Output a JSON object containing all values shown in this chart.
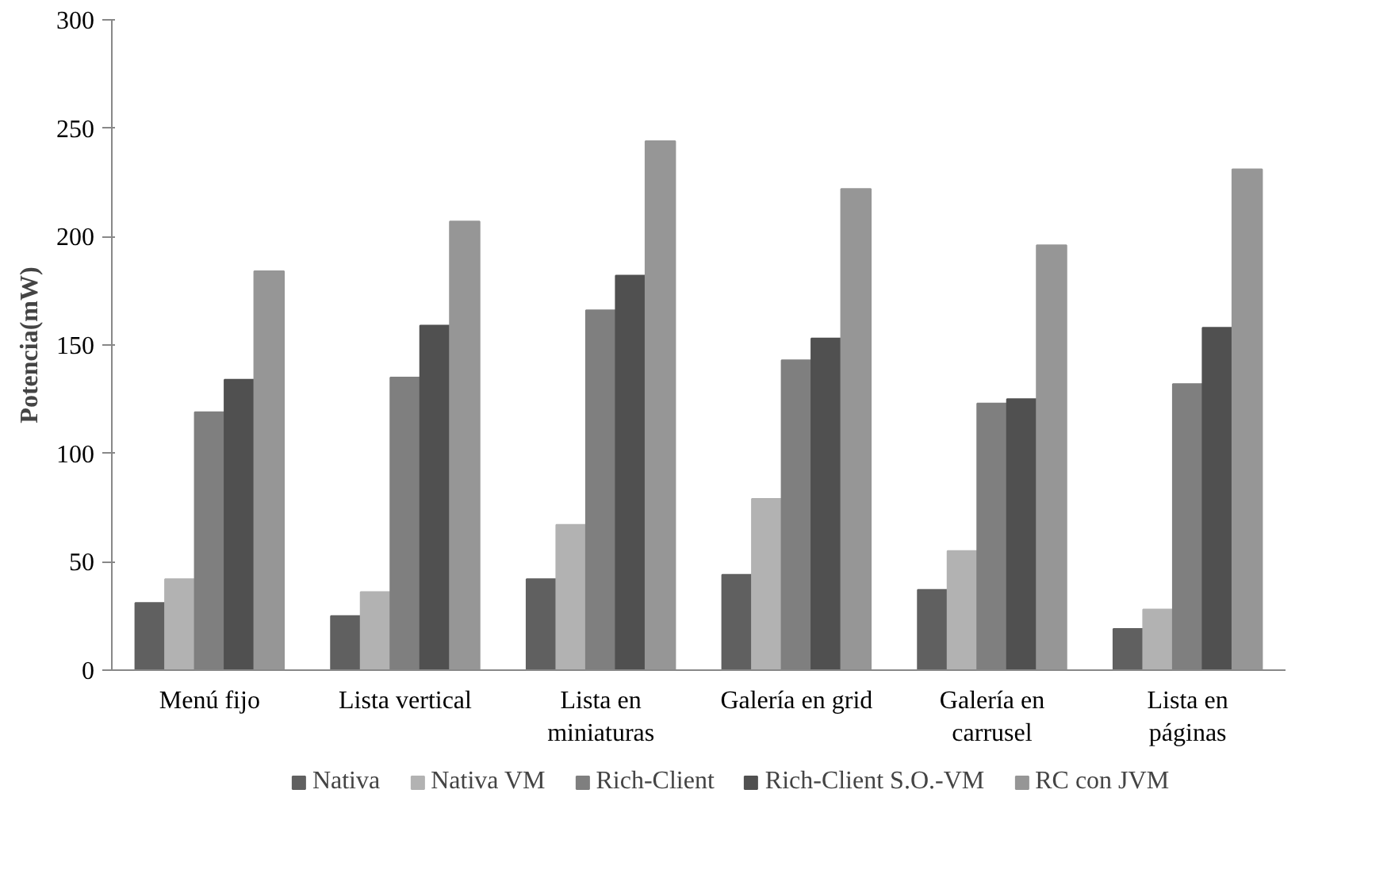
{
  "chart_data": {
    "type": "bar",
    "ylabel": "Potencia(mW)",
    "categories": [
      "Menú fijo",
      "Lista vertical",
      "Lista en\nminiaturas",
      "Galería en grid",
      "Galería en\ncarrusel",
      "Lista en\npáginas"
    ],
    "series": [
      {
        "name": "Nativa",
        "color": "#606060",
        "values": [
          31,
          25,
          42,
          44,
          37,
          19
        ]
      },
      {
        "name": "Nativa VM",
        "color": "#b2b2b2",
        "values": [
          42,
          36,
          67,
          79,
          55,
          28
        ]
      },
      {
        "name": "Rich-Client",
        "color": "#7f7f7f",
        "values": [
          119,
          135,
          166,
          143,
          123,
          132
        ]
      },
      {
        "name": "Rich-Client S.O.-VM",
        "color": "#505050",
        "values": [
          134,
          159,
          182,
          153,
          125,
          158
        ]
      },
      {
        "name": "RC con JVM",
        "color": "#969696",
        "values": [
          184,
          207,
          244,
          222,
          196,
          231
        ]
      }
    ],
    "ylim": [
      0,
      300
    ],
    "yticks": [
      0,
      50,
      100,
      150,
      200,
      250,
      300
    ],
    "grid": false,
    "legend": "bottom"
  }
}
